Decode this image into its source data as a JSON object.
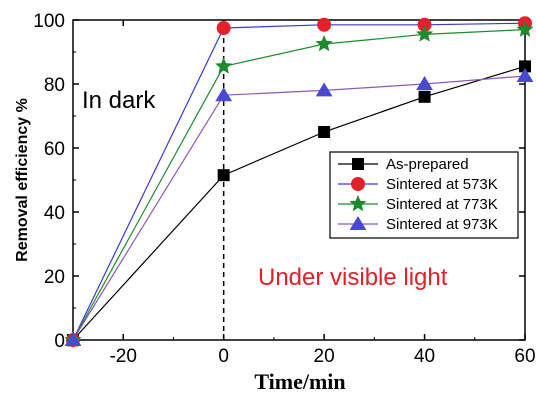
{
  "chart_data": {
    "type": "line",
    "xlabel": "Time/min",
    "ylabel": "Removal efficiency %",
    "xlim": [
      -30,
      60
    ],
    "ylim": [
      0,
      100
    ],
    "xticks": [
      -20,
      0,
      20,
      40,
      60
    ],
    "yticks": [
      0,
      20,
      40,
      60,
      80,
      100
    ],
    "grid": false,
    "legend_position": "center-right",
    "vertical_dashed_line_at_x": 0,
    "annotations": [
      {
        "text": "In dark",
        "color": "#000000"
      },
      {
        "text": "Under visible light",
        "color": "#e0202a"
      }
    ],
    "series": [
      {
        "name": "As-prepared",
        "color": "#000000",
        "marker": "square",
        "x": [
          -30,
          0,
          20,
          40,
          60
        ],
        "y": [
          0,
          51.5,
          65,
          76,
          85.5
        ]
      },
      {
        "name": "Sintered at 573K",
        "color": "#e3202b",
        "line_color": "#3a3ad0",
        "marker": "circle",
        "x": [
          -30,
          0,
          20,
          40,
          60
        ],
        "y": [
          0,
          97.5,
          98.5,
          98.5,
          99
        ]
      },
      {
        "name": "Sintered at 773K",
        "color": "#1e8a2e",
        "marker": "star",
        "x": [
          -30,
          0,
          20,
          40,
          60
        ],
        "y": [
          0,
          85.5,
          92.5,
          95.5,
          97
        ]
      },
      {
        "name": "Sintered at 973K",
        "color": "#4a4ad0",
        "line_color": "#8a5ab8",
        "marker": "triangle",
        "x": [
          -30,
          0,
          20,
          40,
          60
        ],
        "y": [
          0,
          76.5,
          78,
          80,
          82.5
        ]
      }
    ]
  }
}
